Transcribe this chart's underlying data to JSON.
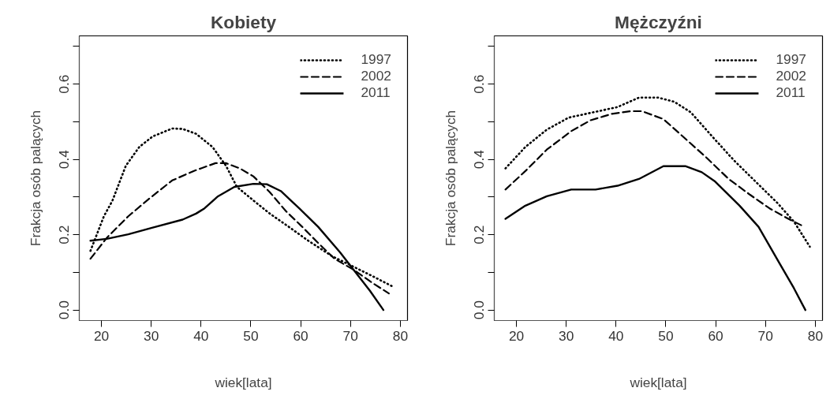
{
  "chart_data": [
    {
      "type": "line",
      "title": "Kobiety",
      "xlabel": "wiek[lata]",
      "ylabel": "Frakcja osób palących",
      "grid": false,
      "legend": "top right",
      "xlim": [
        15.56,
        81.44
      ],
      "ylim": [
        -0.028,
        0.728
      ],
      "xticks": [
        20,
        30,
        40,
        50,
        60,
        70,
        80
      ],
      "yticks": [
        "0.0",
        {
          "value": 0.1,
          "label": null
        },
        {
          "value": 0.2,
          "label": "0.2"
        },
        {
          "value": 0.3,
          "label": null
        },
        {
          "value": 0.4,
          "label": "0.4"
        },
        {
          "value": 0.5,
          "label": null
        },
        {
          "value": 0.6,
          "label": "0.6"
        },
        {
          "value": 0.7,
          "label": null
        }
      ],
      "series": [
        {
          "name": "1997",
          "color": "#000000",
          "line_style": "dotted",
          "x": [
            17.8,
            20.5,
            22.2,
            24.9,
            27.6,
            30.3,
            34.2,
            36.3,
            39,
            42.3,
            45,
            47.2,
            50.5,
            53.8,
            57.6,
            61.4,
            66.3,
            70.6,
            75,
            78.5
          ],
          "values": [
            0.157,
            0.249,
            0.29,
            0.383,
            0.433,
            0.461,
            0.482,
            0.481,
            0.468,
            0.433,
            0.383,
            0.327,
            0.291,
            0.256,
            0.221,
            0.185,
            0.143,
            0.115,
            0.086,
            0.062
          ]
        },
        {
          "name": "2002",
          "color": "#000000",
          "line_style": "dashed",
          "x": [
            17.8,
            21.1,
            25.4,
            29.8,
            34.2,
            38.5,
            42.9,
            45,
            47.8,
            50.5,
            53.8,
            57,
            60.3,
            63.5,
            66.8,
            70.6,
            74.4,
            77.7
          ],
          "values": [
            0.136,
            0.192,
            0.249,
            0.298,
            0.344,
            0.369,
            0.39,
            0.39,
            0.376,
            0.355,
            0.313,
            0.263,
            0.221,
            0.178,
            0.136,
            0.107,
            0.072,
            0.044
          ]
        },
        {
          "name": "2011",
          "color": "#000000",
          "line_style": "solid",
          "x": [
            17.8,
            21.1,
            25.4,
            30.3,
            36.3,
            39,
            40.7,
            43.4,
            46.7,
            50.5,
            53.2,
            56,
            59.7,
            63.5,
            67.9,
            70.6,
            73.9,
            76.6
          ],
          "values": [
            0.184,
            0.189,
            0.201,
            0.219,
            0.24,
            0.256,
            0.27,
            0.302,
            0.327,
            0.335,
            0.334,
            0.316,
            0.27,
            0.221,
            0.153,
            0.107,
            0.051,
            0.0
          ]
        }
      ]
    },
    {
      "type": "line",
      "title": "Mężczyźni",
      "xlabel": "wiek[lata]",
      "ylabel": "Frakcja osób palących",
      "grid": false,
      "legend": "top right",
      "xlim": [
        15.56,
        81.44
      ],
      "ylim": [
        -0.028,
        0.728
      ],
      "xticks": [
        20,
        30,
        40,
        50,
        60,
        70,
        80
      ],
      "yticks": [
        {
          "value": 0,
          "label": "0.0"
        },
        {
          "value": 0.1,
          "label": null
        },
        {
          "value": 0.2,
          "label": "0.2"
        },
        {
          "value": 0.3,
          "label": null
        },
        {
          "value": 0.4,
          "label": "0.4"
        },
        {
          "value": 0.5,
          "label": null
        },
        {
          "value": 0.6,
          "label": "0.6"
        },
        {
          "value": 0.7,
          "label": null
        }
      ],
      "series": [
        {
          "name": "1997",
          "color": "#000000",
          "line_style": "dotted",
          "x": [
            17.8,
            21.8,
            26.1,
            30.5,
            35.4,
            40.3,
            44.6,
            48.5,
            51.7,
            55,
            59.3,
            63.7,
            68,
            72.4,
            75.7,
            78.9
          ],
          "values": [
            0.376,
            0.433,
            0.479,
            0.511,
            0.525,
            0.539,
            0.564,
            0.564,
            0.553,
            0.525,
            0.461,
            0.397,
            0.341,
            0.284,
            0.235,
            0.168
          ]
        },
        {
          "name": "2002",
          "color": "#000000",
          "line_style": "dashed",
          "x": [
            17.8,
            21.8,
            26.1,
            31,
            34.9,
            39.2,
            43,
            45.2,
            49.5,
            53.4,
            58.2,
            62.6,
            66.9,
            70.8,
            74.6,
            77.8
          ],
          "values": [
            0.32,
            0.369,
            0.426,
            0.475,
            0.504,
            0.521,
            0.528,
            0.528,
            0.507,
            0.461,
            0.404,
            0.348,
            0.306,
            0.27,
            0.242,
            0.221
          ]
        },
        {
          "name": "2011",
          "color": "#000000",
          "line_style": "solid",
          "x": [
            17.8,
            21.8,
            26.1,
            31,
            35.9,
            40.3,
            44.6,
            49.5,
            53.9,
            57.2,
            59.9,
            64.8,
            68.6,
            72.9,
            75.7,
            78
          ],
          "values": [
            0.242,
            0.277,
            0.302,
            0.32,
            0.32,
            0.33,
            0.348,
            0.382,
            0.382,
            0.366,
            0.341,
            0.277,
            0.221,
            0.122,
            0.058,
            0.0
          ]
        }
      ]
    }
  ]
}
